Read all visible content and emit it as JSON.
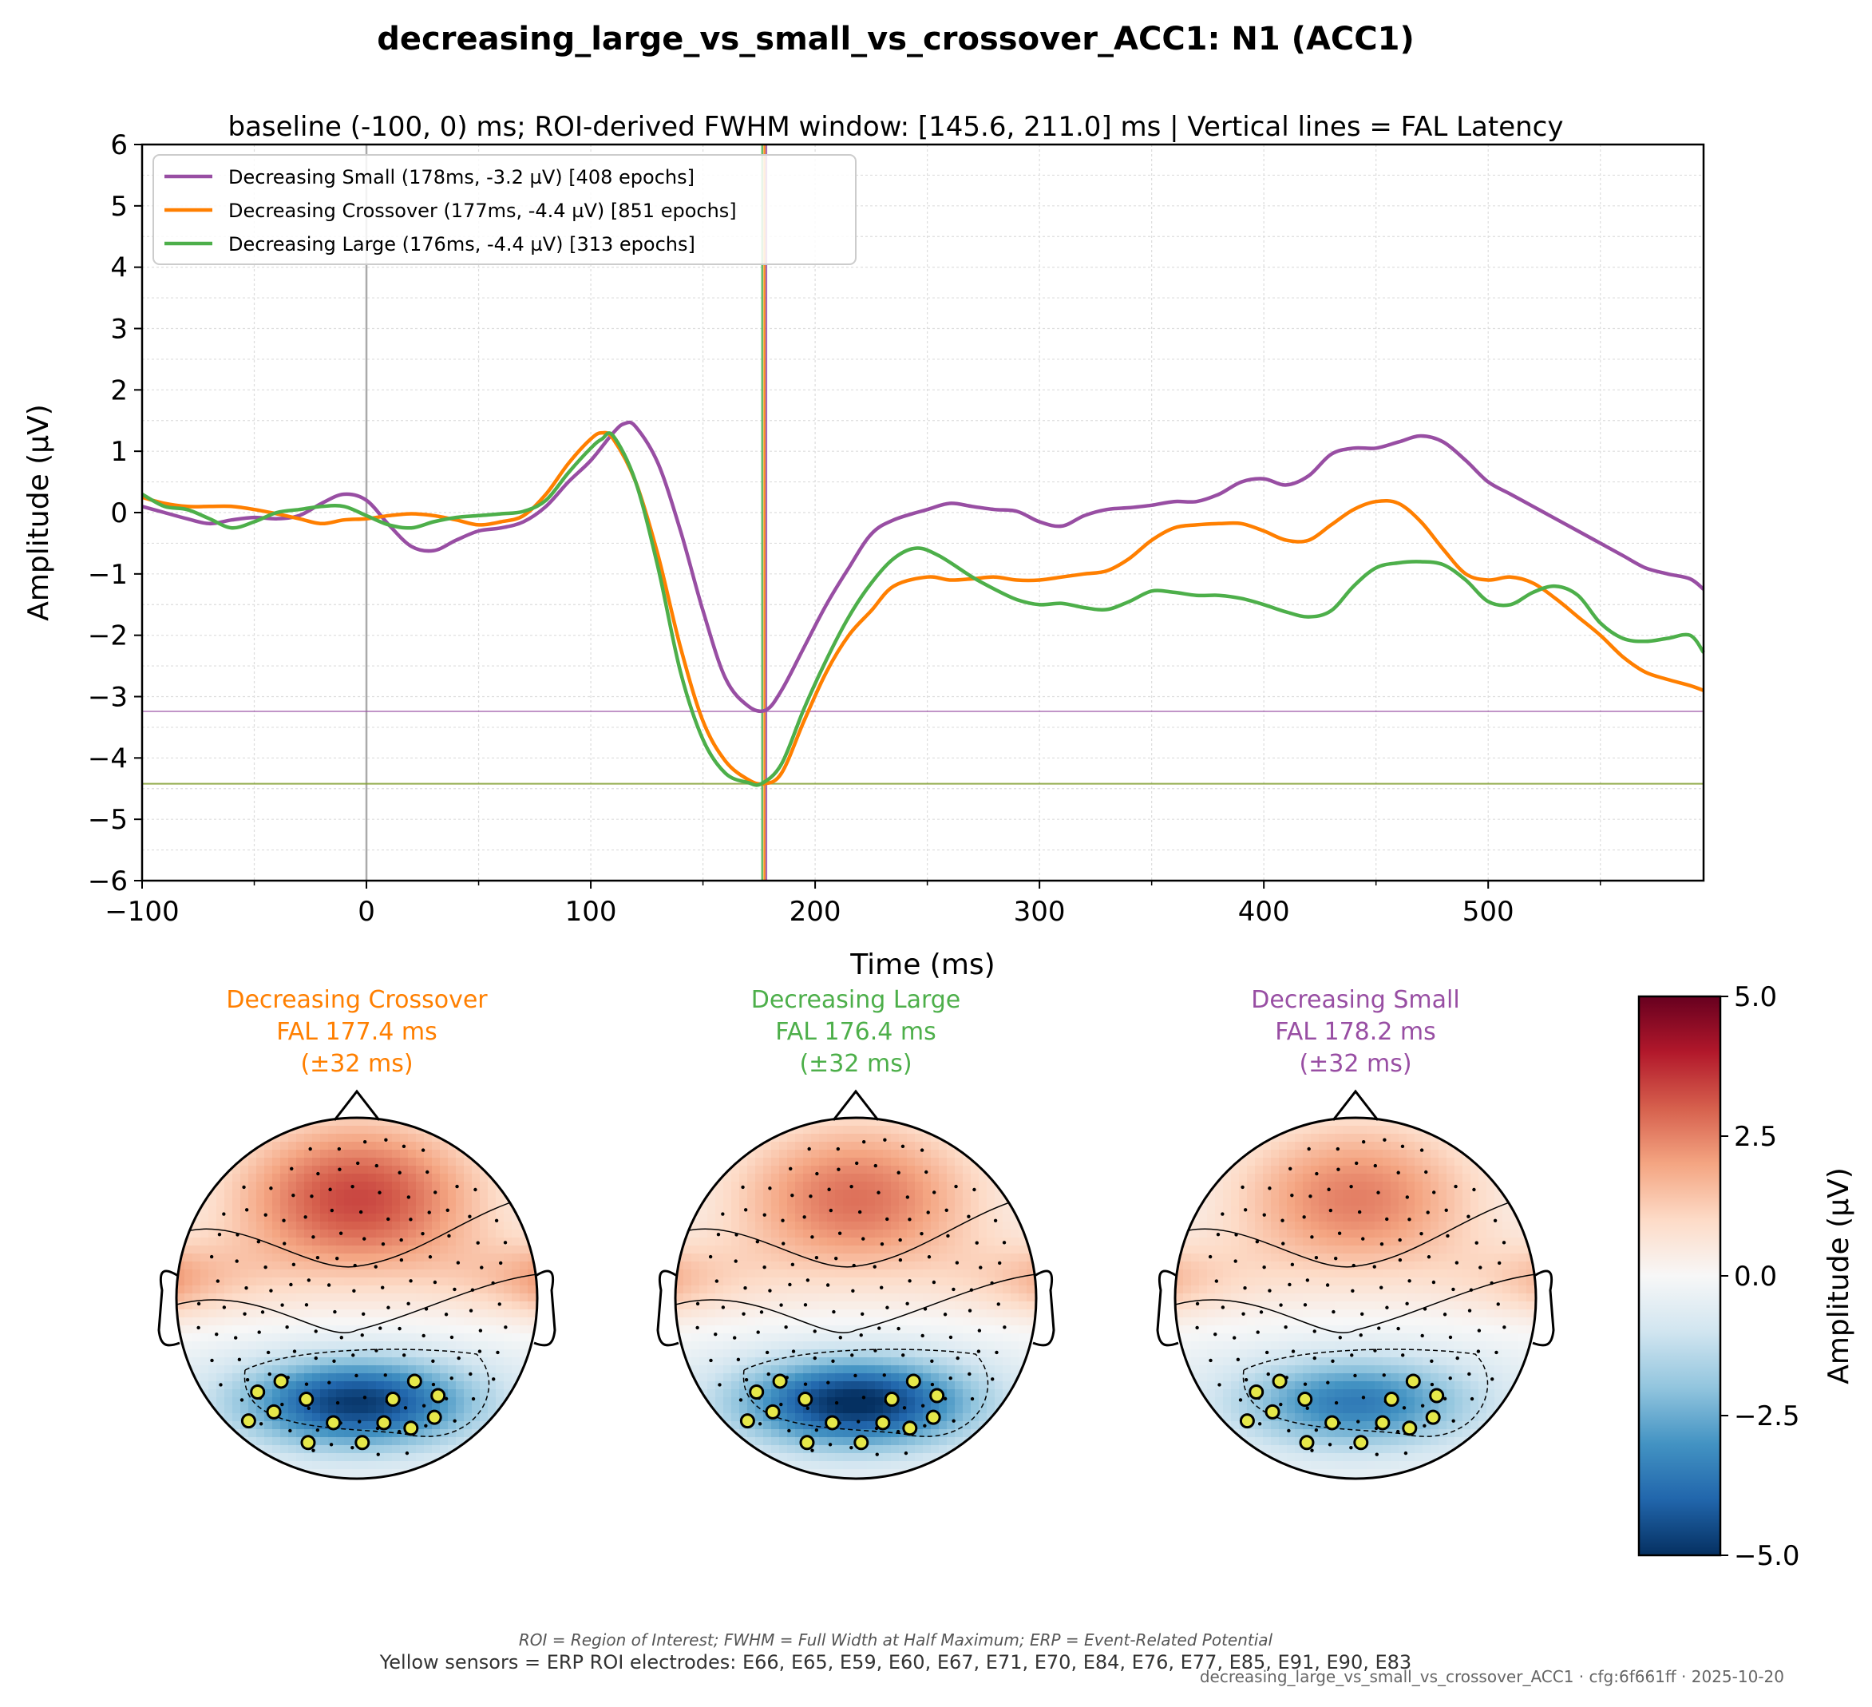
{
  "figure": {
    "title": "decreasing_large_vs_small_vs_crossover_ACC1: N1 (ACC1)",
    "subtitle": "baseline (-100, 0) ms; ROI-derived FWHM window: [145.6, 211.0] ms | Vertical lines = FAL Latency",
    "footnote": "ROI = Region of Interest; FWHM = Full Width at Half Maximum; ERP = Event-Related Potential",
    "roi_note": "Yellow sensors = ERP ROI electrodes: E66, E65, E59, E60, E67, E71, E70, E84, E76, E77, E85, E91, E90, E83",
    "stamp": "decreasing_large_vs_small_vs_crossover_ACC1 · cfg:6f661ff · 2025-10-20"
  },
  "chart_data": [
    {
      "type": "line",
      "xlabel": "Time (ms)",
      "ylabel": "Amplitude (µV)",
      "xlim": [
        -100,
        596
      ],
      "ylim": [
        -6,
        6
      ],
      "xticks": [
        -100,
        0,
        100,
        200,
        300,
        400,
        500
      ],
      "xtick_labels": [
        "−100",
        "0",
        "100",
        "200",
        "300",
        "400",
        "500"
      ],
      "yticks": [
        -6,
        -5,
        -4,
        -3,
        -2,
        -1,
        0,
        1,
        2,
        3,
        4,
        5,
        6
      ],
      "ytick_labels": [
        "−6",
        "−5",
        "−4",
        "−3",
        "−2",
        "−1",
        "0",
        "1",
        "2",
        "3",
        "4",
        "5",
        "6"
      ],
      "grid": true,
      "legend_position": "upper-left",
      "reference_lines": {
        "vertical_zero": 0,
        "fal_latency": [
          {
            "series": "Decreasing Small",
            "x": 178.2
          },
          {
            "series": "Decreasing Crossover",
            "x": 177.4
          },
          {
            "series": "Decreasing Large",
            "x": 176.4
          }
        ],
        "peak_amplitude": [
          {
            "series": "Decreasing Small",
            "y": -3.24
          },
          {
            "series": "Decreasing Crossover",
            "y": -4.42
          },
          {
            "series": "Decreasing Large",
            "y": -4.42
          }
        ]
      },
      "series": [
        {
          "name": "Decreasing Small (178ms, -3.2 µV) [408 epochs]",
          "color": "#984ea3",
          "x": [
            -100,
            -90,
            -80,
            -70,
            -60,
            -50,
            -40,
            -30,
            -20,
            -10,
            0,
            10,
            20,
            30,
            40,
            50,
            60,
            70,
            80,
            90,
            100,
            110,
            115,
            120,
            130,
            140,
            150,
            160,
            170,
            178,
            185,
            195,
            205,
            215,
            225,
            235,
            250,
            260,
            270,
            280,
            290,
            300,
            310,
            320,
            330,
            340,
            350,
            360,
            370,
            380,
            390,
            400,
            410,
            420,
            430,
            440,
            450,
            460,
            470,
            480,
            490,
            500,
            510,
            520,
            530,
            540,
            550,
            560,
            570,
            580,
            590,
            596
          ],
          "y": [
            0.1,
            0.0,
            -0.1,
            -0.18,
            -0.12,
            -0.08,
            -0.1,
            -0.05,
            0.15,
            0.3,
            0.2,
            -0.2,
            -0.55,
            -0.62,
            -0.45,
            -0.3,
            -0.25,
            -0.15,
            0.1,
            0.5,
            0.85,
            1.3,
            1.45,
            1.4,
            0.8,
            -0.3,
            -1.6,
            -2.7,
            -3.15,
            -3.22,
            -2.9,
            -2.2,
            -1.5,
            -0.9,
            -0.35,
            -0.12,
            0.05,
            0.15,
            0.1,
            0.05,
            0.02,
            -0.15,
            -0.22,
            -0.05,
            0.05,
            0.08,
            0.12,
            0.18,
            0.18,
            0.3,
            0.5,
            0.55,
            0.45,
            0.6,
            0.95,
            1.05,
            1.05,
            1.15,
            1.25,
            1.15,
            0.85,
            0.5,
            0.3,
            0.1,
            -0.1,
            -0.3,
            -0.5,
            -0.7,
            -0.9,
            -1.0,
            -1.08,
            -1.25
          ]
        },
        {
          "name": "Decreasing Crossover (177ms, -4.4 µV) [851 epochs]",
          "color": "#ff7f00",
          "x": [
            -100,
            -90,
            -80,
            -70,
            -60,
            -50,
            -40,
            -30,
            -20,
            -10,
            0,
            10,
            20,
            30,
            40,
            50,
            60,
            70,
            80,
            90,
            100,
            105,
            110,
            120,
            130,
            140,
            150,
            160,
            170,
            177,
            185,
            195,
            205,
            215,
            225,
            235,
            250,
            260,
            270,
            280,
            290,
            300,
            310,
            320,
            330,
            340,
            350,
            360,
            370,
            380,
            390,
            400,
            410,
            420,
            430,
            440,
            450,
            460,
            470,
            480,
            490,
            500,
            510,
            520,
            530,
            540,
            550,
            560,
            570,
            580,
            590,
            596
          ],
          "y": [
            0.25,
            0.15,
            0.1,
            0.1,
            0.1,
            0.05,
            -0.02,
            -0.1,
            -0.18,
            -0.12,
            -0.1,
            -0.05,
            -0.02,
            -0.05,
            -0.12,
            -0.2,
            -0.15,
            -0.05,
            0.3,
            0.8,
            1.2,
            1.3,
            1.2,
            0.5,
            -0.7,
            -2.2,
            -3.4,
            -4.05,
            -4.35,
            -4.42,
            -4.25,
            -3.4,
            -2.6,
            -2.0,
            -1.6,
            -1.2,
            -1.05,
            -1.1,
            -1.08,
            -1.05,
            -1.1,
            -1.1,
            -1.05,
            -1.0,
            -0.95,
            -0.75,
            -0.45,
            -0.25,
            -0.2,
            -0.18,
            -0.18,
            -0.3,
            -0.45,
            -0.45,
            -0.2,
            0.05,
            0.18,
            0.15,
            -0.15,
            -0.6,
            -1.0,
            -1.1,
            -1.05,
            -1.15,
            -1.4,
            -1.7,
            -2.0,
            -2.35,
            -2.6,
            -2.72,
            -2.82,
            -2.9
          ]
        },
        {
          "name": "Decreasing Large (176ms, -4.4 µV) [313 epochs]",
          "color": "#4daf4a",
          "x": [
            -100,
            -90,
            -80,
            -70,
            -60,
            -50,
            -40,
            -30,
            -20,
            -10,
            0,
            10,
            20,
            30,
            40,
            50,
            60,
            70,
            80,
            90,
            100,
            105,
            110,
            120,
            130,
            140,
            150,
            160,
            170,
            176,
            185,
            195,
            205,
            215,
            225,
            235,
            245,
            255,
            270,
            280,
            290,
            300,
            310,
            320,
            330,
            340,
            350,
            360,
            370,
            380,
            390,
            400,
            410,
            420,
            430,
            440,
            450,
            460,
            470,
            480,
            490,
            500,
            510,
            520,
            530,
            540,
            550,
            560,
            570,
            580,
            590,
            596
          ],
          "y": [
            0.3,
            0.1,
            0.05,
            -0.1,
            -0.25,
            -0.15,
            0.0,
            0.05,
            0.1,
            0.1,
            -0.05,
            -0.2,
            -0.25,
            -0.15,
            -0.08,
            -0.05,
            -0.02,
            0.02,
            0.2,
            0.65,
            1.05,
            1.2,
            1.25,
            0.5,
            -0.9,
            -2.6,
            -3.7,
            -4.25,
            -4.4,
            -4.42,
            -4.1,
            -3.2,
            -2.4,
            -1.7,
            -1.15,
            -0.75,
            -0.58,
            -0.7,
            -1.05,
            -1.25,
            -1.42,
            -1.5,
            -1.48,
            -1.55,
            -1.58,
            -1.45,
            -1.28,
            -1.3,
            -1.35,
            -1.35,
            -1.4,
            -1.5,
            -1.62,
            -1.7,
            -1.6,
            -1.2,
            -0.9,
            -0.82,
            -0.8,
            -0.85,
            -1.1,
            -1.45,
            -1.5,
            -1.3,
            -1.2,
            -1.35,
            -1.8,
            -2.05,
            -2.1,
            -2.05,
            -2.0,
            -2.28
          ]
        }
      ]
    },
    {
      "type": "heatmap",
      "variant": "topomaps",
      "colormap": "RdBu_r",
      "colorbar_label": "Amplitude (µV)",
      "clim": [
        -5,
        5
      ],
      "colorbar_ticks": [
        5,
        2.5,
        0,
        -2.5,
        -5
      ],
      "colorbar_tick_labels": [
        "5.0",
        "2.5",
        "0.0",
        "−2.5",
        "−5.0"
      ],
      "maps": [
        {
          "title": [
            "Decreasing Crossover",
            "FAL 177.4 ms",
            "(±32 ms)"
          ],
          "color": "#ff7f00",
          "frontal_max": 3.6,
          "posterior_min": -4.6
        },
        {
          "title": [
            "Decreasing Large",
            "FAL 176.4 ms",
            "(±32 ms)"
          ],
          "color": "#4daf4a",
          "frontal_max": 3.0,
          "posterior_min": -4.9
        },
        {
          "title": [
            "Decreasing Small",
            "FAL 178.2 ms",
            "(±32 ms)"
          ],
          "color": "#984ea3",
          "frontal_max": 2.8,
          "posterior_min": -3.3
        }
      ]
    }
  ]
}
